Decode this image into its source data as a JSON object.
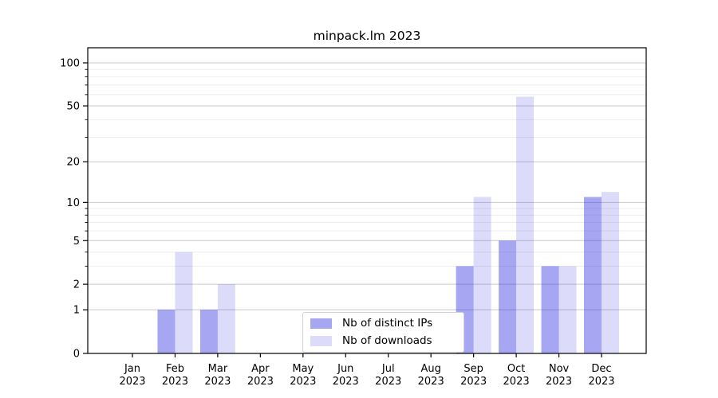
{
  "title": "minpack.lm 2023",
  "chart_data": {
    "type": "bar",
    "title": "minpack.lm 2023",
    "categories": [
      "Jan",
      "Feb",
      "Mar",
      "Apr",
      "May",
      "Jun",
      "Jul",
      "Aug",
      "Sep",
      "Oct",
      "Nov",
      "Dec"
    ],
    "year": "2023",
    "series": [
      {
        "name": "Nb of distinct IPs",
        "values": [
          0,
          1,
          1,
          0,
          0,
          0,
          0,
          0,
          3,
          5,
          3,
          11
        ]
      },
      {
        "name": "Nb of downloads",
        "values": [
          0,
          4,
          2,
          0,
          0,
          0,
          0,
          0,
          11,
          58,
          3,
          12
        ]
      }
    ],
    "xlabel": "",
    "ylabel": "",
    "y_scale": "log1p",
    "ylim": [
      0,
      127.4
    ],
    "y_ticks_major": [
      0,
      1,
      2,
      5,
      10,
      20,
      50,
      100
    ],
    "y_ticks_minor": [
      3,
      4,
      6,
      7,
      8,
      9,
      30,
      40,
      60,
      70,
      80,
      90
    ],
    "grid": true,
    "legend_position": "lower center"
  },
  "colors": {
    "bar_base": "#2828df",
    "ips_alpha": 0.41,
    "downloads_alpha": 0.163,
    "ips_hex": "#a7a7f2",
    "downloads_hex": "#dcdcf8",
    "grid_major": "#c9c9c9",
    "grid_minor": "#ededed",
    "spine": "#000000",
    "text": "#000000"
  }
}
